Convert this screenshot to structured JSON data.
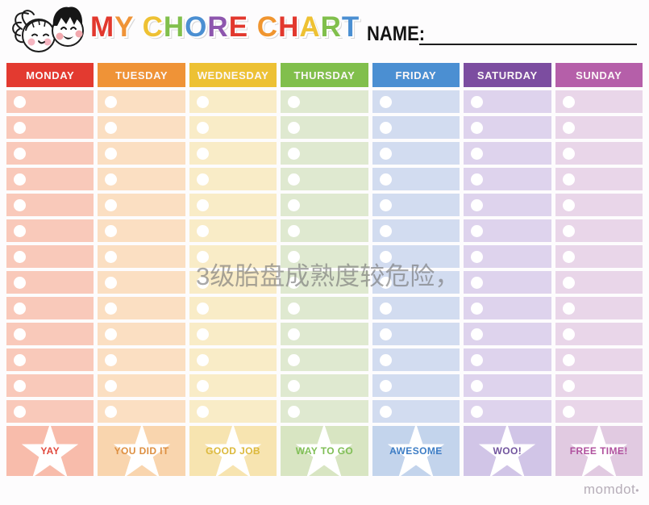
{
  "header": {
    "title_letters": [
      {
        "char": "M",
        "color": "#e2382e"
      },
      {
        "char": "Y",
        "color": "#ef9337"
      },
      {
        "char": " ",
        "color": ""
      },
      {
        "char": "C",
        "color": "#eec133"
      },
      {
        "char": "H",
        "color": "#81bf4c"
      },
      {
        "char": "O",
        "color": "#4b8fd2"
      },
      {
        "char": "R",
        "color": "#8e56ae"
      },
      {
        "char": "E",
        "color": "#e2382e"
      },
      {
        "char": " ",
        "color": ""
      },
      {
        "char": "C",
        "color": "#f0952f"
      },
      {
        "char": "H",
        "color": "#e2382e"
      },
      {
        "char": "A",
        "color": "#eec133"
      },
      {
        "char": "R",
        "color": "#81bf4c"
      },
      {
        "char": "T",
        "color": "#4b8fd2"
      }
    ],
    "title_text": "MY CHORE CHART",
    "name_label": "NAME:",
    "name_value": ""
  },
  "chart": {
    "rows_per_day": 13,
    "days": [
      {
        "label": "MONDAY",
        "header_color": "#e33a30",
        "cell_color": "#f9c9ba",
        "award_bg": "#f8bcab",
        "award_label": "YAY",
        "award_color": "#e14a3e"
      },
      {
        "label": "TUESDAY",
        "header_color": "#ef9337",
        "cell_color": "#fbdfc2",
        "award_bg": "#f9d5ae",
        "award_label": "YOU DID IT",
        "award_color": "#dd8f41"
      },
      {
        "label": "WEDNESDAY",
        "header_color": "#edc134",
        "cell_color": "#f9ecc7",
        "award_bg": "#f7e4b0",
        "award_label": "GOOD JOB",
        "award_color": "#dcb93c"
      },
      {
        "label": "THURSDAY",
        "header_color": "#81bf4c",
        "cell_color": "#dfe9d0",
        "award_bg": "#d8e5c2",
        "award_label": "WAY TO GO",
        "award_color": "#7fbe55"
      },
      {
        "label": "FRIDAY",
        "header_color": "#4b8fd2",
        "cell_color": "#d2dcf0",
        "award_bg": "#c3d4ec",
        "award_label": "AWESOME",
        "award_color": "#3d7dc5"
      },
      {
        "label": "SATURDAY",
        "header_color": "#7c4da0",
        "cell_color": "#ded3ed",
        "award_bg": "#d1c5e7",
        "award_label": "WOO!",
        "award_color": "#72559e"
      },
      {
        "label": "SUNDAY",
        "header_color": "#b55fa9",
        "cell_color": "#e9d6e9",
        "award_bg": "#e1cae1",
        "award_label": "FREE TIME!",
        "award_color": "#b0519e"
      }
    ]
  },
  "watermark": {
    "text": "3级胎盘成熟度较危险，"
  },
  "footer": {
    "brand": "momdot",
    "brand_mark": "•"
  }
}
